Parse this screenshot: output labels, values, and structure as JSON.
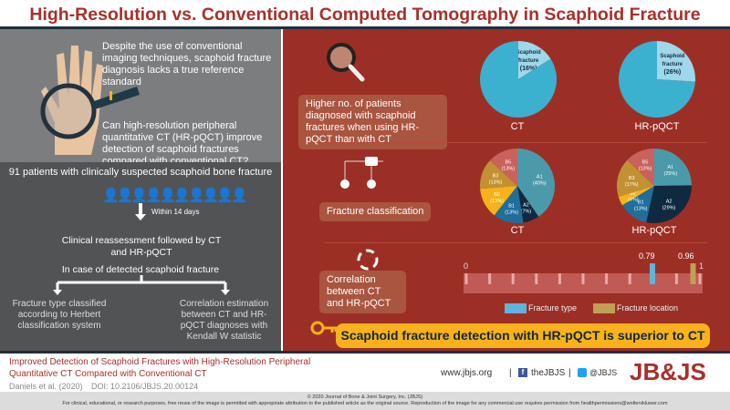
{
  "title": "High-Resolution vs. Conventional Computed Tomography in Scaphoid Fracture Detection",
  "left": {
    "intro": "Despite the use of conventional imaging techniques, scaphoid fracture diagnosis lacks a true reference standard",
    "question": "Can high-resolution peripheral quantitative CT (HR-pQCT) improve detection of scaphoid fractures compared with conventional CT?",
    "patients": "91 patients with clinically suspected scaphoid bone fracture",
    "interval": "Within 14 days",
    "reassess": "Clinical reassessment followed by CT and HR-pQCT",
    "if_detected": "In case of detected scaphoid fracture",
    "branch_left": "Fracture type classified according to Herbert classification system",
    "branch_right": "Correlation estimation between CT and HR-pQCT diagnoses with Kendall W statistic"
  },
  "right": {
    "finding1": "Higher no. of patients diagnosed with scaphoid fractures when using HR-pQCT than with CT",
    "finding2": "Fracture classification",
    "finding3": "Correlation between CT and HR-pQCT",
    "conclusion": "Scaphoid fracture detection with HR-pQCT is superior to CT"
  },
  "chart_data": [
    {
      "type": "pie",
      "title": "CT",
      "slices": [
        {
          "label": "Scaphoid fracture",
          "value": 16,
          "text": "(16%)",
          "color": "#9ed8ea"
        },
        {
          "label": "",
          "value": 84,
          "color": "#3cb0cf"
        }
      ]
    },
    {
      "type": "pie",
      "title": "HR-pQCT",
      "slices": [
        {
          "label": "Scaphoid fracture",
          "value": 26,
          "text": "(26%)",
          "color": "#9ed8ea"
        },
        {
          "label": "",
          "value": 74,
          "color": "#3cb0cf"
        }
      ]
    },
    {
      "type": "pie",
      "title": "CT",
      "slices": [
        {
          "label": "A1",
          "value": 40,
          "color": "#4a9aab"
        },
        {
          "label": "A2",
          "value": 7,
          "color": "#0f2a40"
        },
        {
          "label": "B1",
          "value": 13,
          "color": "#1f6e9c"
        },
        {
          "label": "B2",
          "value": 13,
          "color": "#f6b319"
        },
        {
          "label": "B3",
          "value": 13,
          "color": "#c29133"
        },
        {
          "label": "B5",
          "value": 13,
          "color": "#c9625c"
        }
      ]
    },
    {
      "type": "pie",
      "title": "HR-pQCT",
      "slices": [
        {
          "label": "A1",
          "value": 25,
          "color": "#4a9aab"
        },
        {
          "label": "A2",
          "value": 29,
          "color": "#0f2a40"
        },
        {
          "label": "B1",
          "value": 13,
          "color": "#1f6e9c"
        },
        {
          "label": "B2",
          "value": 4,
          "color": "#f6b319"
        },
        {
          "label": "B3",
          "value": 17,
          "color": "#c29133"
        },
        {
          "label": "B5",
          "value": 13,
          "color": "#c9625c"
        }
      ]
    },
    {
      "type": "bar",
      "title": "",
      "xlim": [
        0,
        1
      ],
      "tick_labels": [
        "0",
        "1"
      ],
      "series": [
        {
          "name": "Fracture type",
          "value": 0.79,
          "text": "0.79",
          "color": "#5eb4dc"
        },
        {
          "name": "Fracture location",
          "value": 0.96,
          "text": "0.96",
          "color": "#bfa055"
        }
      ]
    }
  ],
  "footer": {
    "article_title": "Improved Detection of Scaphoid Fractures with High-Resolution Peripheral Quantitative CT Compared with Conventional CT",
    "authors": "Daniels et al. (2020)",
    "doi": "DOI: 10.2106/JBJS.20.00124",
    "website": "www.jbjs.org",
    "facebook": "theJBJS",
    "twitter": "@JBJS",
    "logo": "JB&JS",
    "copyright": "© 2020 Journal of Bone & Joint Surgery, Inc. (JBJS)",
    "license": "For clinical, educational, or research purposes, free reuse of the image is permitted with appropriate attribution to the published article as the original source. Reproduction of the image for any commercial use requires permission from healthpermissions@wolterskluwer.com"
  }
}
